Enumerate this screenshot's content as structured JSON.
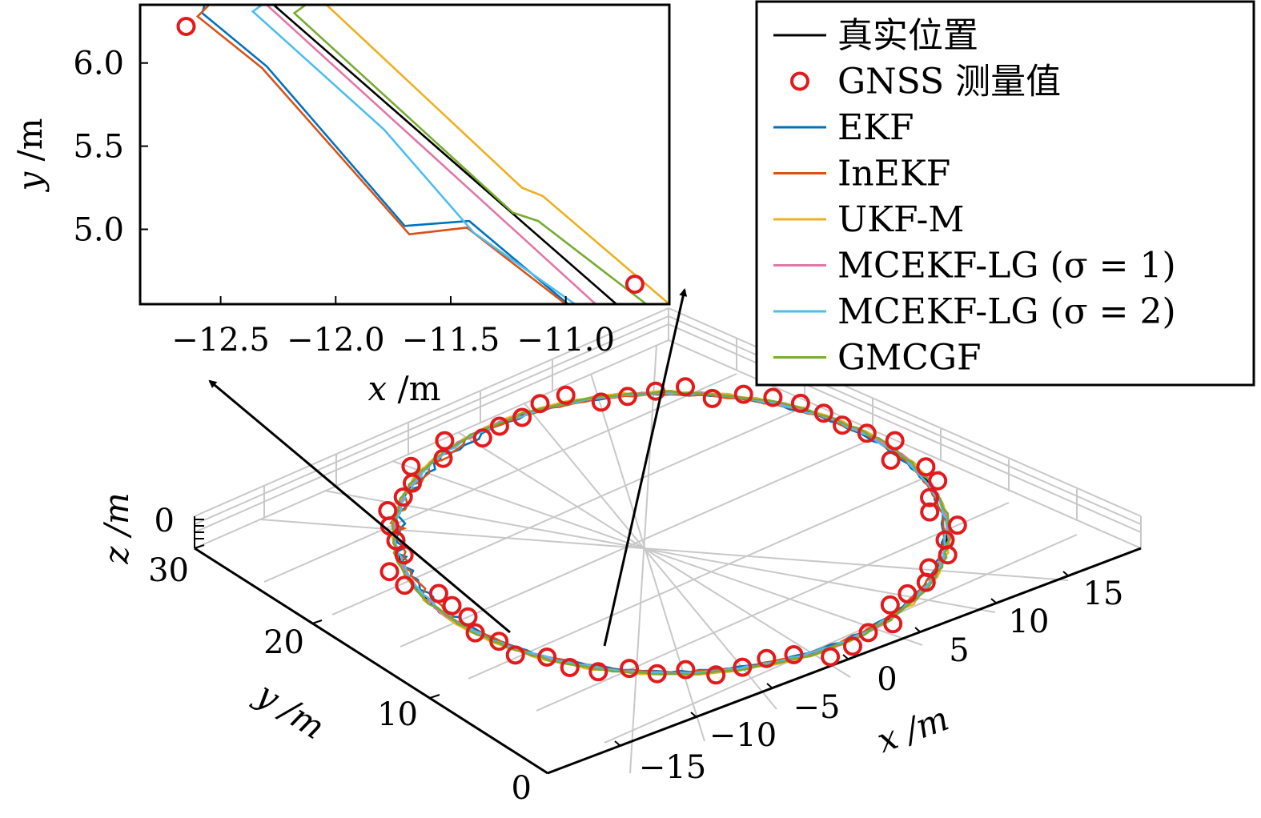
{
  "chart_data": [
    {
      "type": "line",
      "subplot": "inset-zoom",
      "xlabel": "x /m",
      "ylabel": "y /m",
      "xlim": [
        -12.85,
        -10.55
      ],
      "ylim": [
        4.55,
        6.35
      ],
      "x_ticks": [
        "−12.5",
        "−12.0",
        "−11.5",
        "−11.0"
      ],
      "x_tick_values": [
        -12.5,
        -12.0,
        -11.5,
        -11.0
      ],
      "y_ticks": [
        "5.0",
        "5.5",
        "6.0"
      ],
      "y_tick_values": [
        5.0,
        5.5,
        6.0
      ],
      "grid": false,
      "series": [
        {
          "name": "真实位置",
          "color": "#000000",
          "points": [
            [
              -12.27,
              6.35
            ],
            [
              -10.78,
              4.55
            ]
          ]
        },
        {
          "name": "EKF",
          "color": "#0072BD",
          "points": [
            [
              -12.57,
              6.35
            ],
            [
              -12.58,
              6.3
            ],
            [
              -12.3,
              5.98
            ],
            [
              -11.7,
              5.02
            ],
            [
              -11.42,
              5.05
            ],
            [
              -10.99,
              4.55
            ]
          ]
        },
        {
          "name": "InEKF",
          "color": "#D95319",
          "points": [
            [
              -12.55,
              6.35
            ],
            [
              -12.6,
              6.28
            ],
            [
              -12.32,
              5.97
            ],
            [
              -11.68,
              4.97
            ],
            [
              -11.43,
              5.01
            ],
            [
              -11.0,
              4.55
            ]
          ]
        },
        {
          "name": "UKF-M",
          "color": "#EDB120",
          "points": [
            [
              -12.04,
              6.35
            ],
            [
              -11.19,
              5.25
            ],
            [
              -11.1,
              5.2
            ],
            [
              -10.55,
              4.55
            ]
          ]
        },
        {
          "name": "MCEKF-LG (σ = 1)",
          "color": "#E377A8",
          "points": [
            [
              -12.3,
              6.35
            ],
            [
              -10.87,
              4.55
            ]
          ]
        },
        {
          "name": "MCEKF-LG (σ = 2)",
          "color": "#4DBEEE",
          "points": [
            [
              -12.32,
              6.35
            ],
            [
              -12.36,
              6.31
            ],
            [
              -11.79,
              5.6
            ],
            [
              -11.4,
              4.98
            ],
            [
              -10.96,
              4.55
            ]
          ]
        },
        {
          "name": "GMCGF",
          "color": "#77AC30",
          "points": [
            [
              -12.13,
              6.35
            ],
            [
              -12.18,
              6.3
            ],
            [
              -11.23,
              5.1
            ],
            [
              -11.12,
              5.05
            ],
            [
              -10.65,
              4.55
            ]
          ]
        }
      ],
      "gnss_points": [
        [
          -12.65,
          6.22
        ],
        [
          -10.7,
          4.67
        ]
      ]
    },
    {
      "type": "line",
      "subplot": "3d-trajectory",
      "xlabel": "x /m",
      "ylabel": "y /m",
      "zlabel": "z /m",
      "x_ticks": [
        "−15",
        "−10",
        "−5",
        "0",
        "5",
        "10",
        "15"
      ],
      "y_ticks": [
        "0",
        "10",
        "20",
        "30"
      ],
      "z_ticks": [
        "0"
      ],
      "grid": true,
      "trajectory": "circle",
      "circle_center": [
        0,
        17
      ],
      "circle_radius": 13,
      "gnss_points_count": 60
    }
  ],
  "legend": {
    "placement": "top-right",
    "entries": [
      {
        "label": "真实位置",
        "color": "#000000",
        "marker": "line"
      },
      {
        "label": "GNSS 测量值",
        "color": "#E31A1C",
        "marker": "circle"
      },
      {
        "label": "EKF",
        "color": "#0072BD",
        "marker": "line"
      },
      {
        "label": "InEKF",
        "color": "#D95319",
        "marker": "line"
      },
      {
        "label": "UKF-M",
        "color": "#EDB120",
        "marker": "line"
      },
      {
        "label": "MCEKF-LG (σ = 1)",
        "color": "#E377A8",
        "marker": "line"
      },
      {
        "label": "MCEKF-LG (σ = 2)",
        "color": "#4DBEEE",
        "marker": "line"
      },
      {
        "label": "GMCGF",
        "color": "#77AC30",
        "marker": "line"
      }
    ]
  },
  "gnss_color": "#E31A1C"
}
